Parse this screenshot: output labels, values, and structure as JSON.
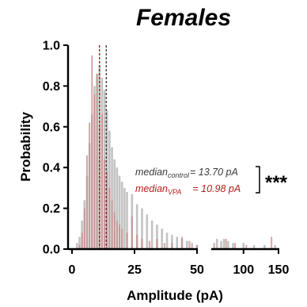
{
  "chart_data": {
    "type": "bar",
    "title": "Females",
    "xlabel": "Amplitude (pA)",
    "ylabel": "Probability",
    "ylim": [
      0,
      1.0
    ],
    "y_ticks": [
      "0.0",
      "0.2",
      "0.4",
      "0.6",
      "0.8",
      "1.0"
    ],
    "x_segments": [
      {
        "xlim": [
          0,
          50
        ],
        "ticks": [
          "0",
          "25",
          "50"
        ]
      },
      {
        "xlim": [
          55,
          150
        ],
        "ticks": [
          "100",
          "150"
        ]
      }
    ],
    "colors": {
      "control": "#bdbdbd",
      "vpa": "#c98a8a",
      "control_line": "#444444",
      "vpa_line": "#a61c1c",
      "vpa_text": "#b21e1e"
    },
    "series": [
      {
        "name": "control",
        "x": [
          2,
          3,
          4,
          5,
          6,
          7,
          8,
          9,
          10,
          11,
          12,
          13,
          14,
          15,
          16,
          17,
          18,
          19,
          20,
          21,
          22,
          24,
          26,
          28,
          30,
          32,
          34,
          36,
          38,
          40,
          42,
          44,
          46,
          48,
          50,
          62,
          68,
          72,
          78,
          85,
          100,
          115,
          130,
          145
        ],
        "values": [
          0.03,
          0.06,
          0.14,
          0.24,
          0.36,
          0.52,
          0.66,
          0.8,
          0.86,
          0.9,
          0.84,
          0.78,
          0.68,
          0.58,
          0.5,
          0.44,
          0.4,
          0.36,
          0.33,
          0.3,
          0.28,
          0.27,
          0.22,
          0.2,
          0.17,
          0.14,
          0.12,
          0.1,
          0.08,
          0.07,
          0.06,
          0.05,
          0.04,
          0.03,
          0.02,
          0.05,
          0.04,
          0.05,
          0.04,
          0.03,
          0.03,
          0.02,
          0.02,
          0.02
        ]
      },
      {
        "name": "VPA",
        "x": [
          3,
          4,
          5,
          6,
          7,
          8,
          9,
          10,
          11,
          12,
          13,
          14,
          15,
          16,
          17,
          18,
          19,
          20,
          22,
          24,
          26,
          28,
          31,
          34,
          37,
          40,
          44,
          47,
          50,
          58,
          75,
          88,
          104,
          140
        ],
        "values": [
          0.02,
          0.08,
          0.2,
          0.46,
          0.62,
          0.95,
          0.76,
          0.86,
          0.6,
          0.66,
          0.44,
          0.38,
          0.3,
          0.24,
          0.18,
          0.14,
          0.12,
          0.1,
          0.08,
          0.16,
          0.07,
          0.05,
          0.04,
          0.05,
          0.03,
          0.03,
          0.06,
          0.04,
          0.02,
          0.03,
          0.05,
          0.03,
          0.02,
          0.06
        ]
      }
    ],
    "medians": {
      "control": 13.7,
      "vpa": 10.98
    },
    "annotations": {
      "control_base": "median",
      "control_sub": "control",
      "control_rest": "= 13.70 pA",
      "vpa_base": "median",
      "vpa_sub": "VPA",
      "vpa_rest": "= 10.98 pA",
      "significance": "***"
    }
  }
}
